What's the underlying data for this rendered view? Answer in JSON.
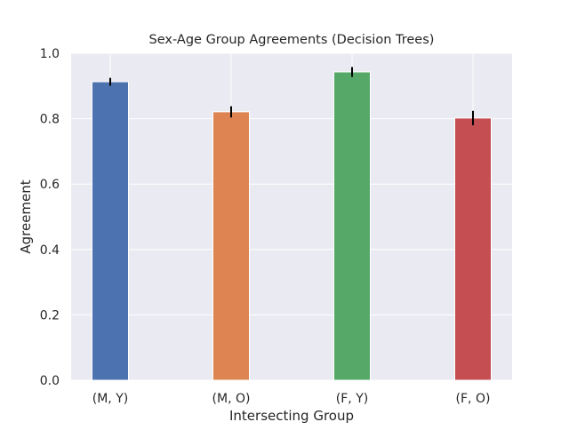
{
  "chart_data": {
    "type": "bar",
    "title": "Sex-Age Group Agreements (Decision Trees)",
    "xlabel": "Intersecting Group",
    "ylabel": "Agreement",
    "categories": [
      "(M, Y)",
      "(M, O)",
      "(F, Y)",
      "(F, O)"
    ],
    "values": [
      0.913,
      0.821,
      0.943,
      0.802
    ],
    "errors": [
      0.012,
      0.017,
      0.015,
      0.022
    ],
    "colors": [
      "#4c72b0",
      "#dd8452",
      "#55a868",
      "#c44e52"
    ],
    "ylim": [
      0,
      1.0
    ],
    "yticks": [
      "0.0",
      "0.2",
      "0.4",
      "0.6",
      "0.8",
      "1.0"
    ],
    "grid": true,
    "background": "#eaeaf2",
    "error_bar_color": "#000000"
  }
}
